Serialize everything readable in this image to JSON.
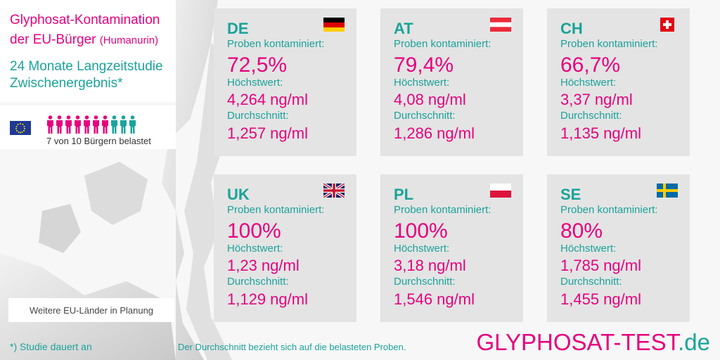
{
  "title": {
    "line1": "Glyphosat-Kontamination",
    "line2": "der EU-Bürger",
    "line2_sub": "(Humanurin)"
  },
  "study": {
    "line1": "24 Monate Langzeitstudie",
    "line2": "Zwischenergebnis*"
  },
  "eu_stat": {
    "caption": "7 von 10 Bürgern belastet",
    "affected": 7,
    "total": 10,
    "colors": {
      "affected": "#e6007e",
      "unaffected": "#1aa39a"
    }
  },
  "planning": "Weitere EU-Länder in Planung",
  "countries": [
    {
      "code": "DE",
      "flag_icon": "germany-flag-icon",
      "samples_label": "Proben kontaminiert:",
      "rate": "72,5%",
      "max_label": "Höchstwert:",
      "max": "4,264 ng/ml",
      "avg_label": "Durchschnitt:",
      "avg": "1,257 ng/ml"
    },
    {
      "code": "AT",
      "flag_icon": "austria-flag-icon",
      "samples_label": "Proben kontaminiert:",
      "rate": "79,4%",
      "max_label": "Höchstwert:",
      "max": "4,08 ng/ml",
      "avg_label": "Durchschnitt:",
      "avg": "1,286 ng/ml"
    },
    {
      "code": "CH",
      "flag_icon": "switzerland-flag-icon",
      "samples_label": "Proben kontaminiert:",
      "rate": "66,7%",
      "max_label": "Höchstwert:",
      "max": "3,37 ng/ml",
      "avg_label": "Durchschnitt:",
      "avg": "1,135 ng/ml"
    },
    {
      "code": "UK",
      "flag_icon": "uk-flag-icon",
      "samples_label": "Proben kontaminiert:",
      "rate": "100%",
      "max_label": "Höchstwert:",
      "max": "1,23 ng/ml",
      "avg_label": "Durchschnitt:",
      "avg": "1,129 ng/ml"
    },
    {
      "code": "PL",
      "flag_icon": "poland-flag-icon",
      "samples_label": "Proben kontaminiert:",
      "rate": "100%",
      "max_label": "Höchstwert:",
      "max": "3,18 ng/ml",
      "avg_label": "Durchschnitt:",
      "avg": "1,546 ng/ml"
    },
    {
      "code": "SE",
      "flag_icon": "sweden-flag-icon",
      "samples_label": "Proben kontaminiert:",
      "rate": "80%",
      "max_label": "Höchstwert:",
      "max": "1,785 ng/ml",
      "avg_label": "Durchschnitt:",
      "avg": "1,455 ng/ml"
    }
  ],
  "footer": {
    "footnote": "*) Studie dauert an",
    "avg_note": "Der Durchschnitt bezieht sich auf die belasteten Proben.",
    "brand_main": "GLYPHOSAT-TEST",
    "brand_tld": ".de"
  },
  "colors": {
    "accent_pink": "#e6007e",
    "accent_teal": "#1aa39a",
    "card_bg": "#e4e4e4"
  }
}
